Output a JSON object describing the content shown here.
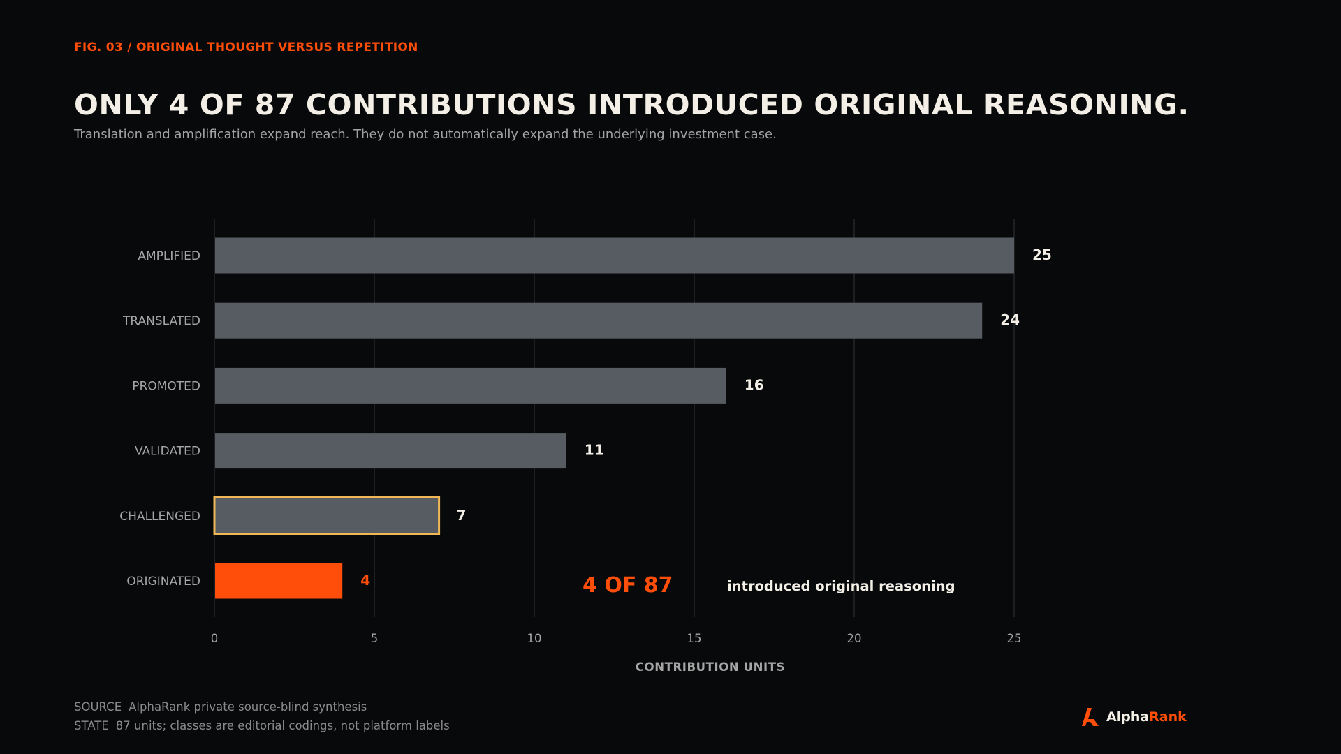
{
  "header": {
    "fig_label": "FIG. 03 / ORIGINAL THOUGHT VERSUS REPETITION",
    "title": "ONLY 4 OF 87 CONTRIBUTIONS INTRODUCED ORIGINAL REASONING.",
    "subtitle": "Translation and amplification expand reach. They do not automatically expand the underlying investment case."
  },
  "chart_data": {
    "type": "bar",
    "orientation": "horizontal",
    "categories": [
      "AMPLIFIED",
      "TRANSLATED",
      "PROMOTED",
      "VALIDATED",
      "CHALLENGED",
      "ORIGINATED"
    ],
    "values": [
      25,
      24,
      16,
      11,
      7,
      4
    ],
    "xlabel": "CONTRIBUTION UNITS",
    "ylabel": "",
    "xlim": [
      0,
      25
    ],
    "xticks": [
      0,
      5,
      10,
      15,
      20,
      25
    ],
    "grid": "vertical",
    "highlight": {
      "outlined": "CHALLENGED",
      "accent": "ORIGINATED"
    },
    "annotation": {
      "value": "4 OF 87",
      "text": "introduced original reasoning"
    },
    "colors": {
      "bar": "#575c62",
      "accent": "#ff4d0a",
      "outline": "#f0b756",
      "grid": "#24272b",
      "label": "#a6a6a6",
      "value": "#f3efe6"
    }
  },
  "footer": {
    "source_key": "SOURCE",
    "source_text": "AlphaRank private source-blind synthesis",
    "state_key": "STATE",
    "state_text": "87 units; classes are editorial codings, not platform labels"
  },
  "brand": {
    "name_part1": "Alpha",
    "name_part2": "Rank",
    "logo_icon": "alpharank-logo-icon"
  }
}
